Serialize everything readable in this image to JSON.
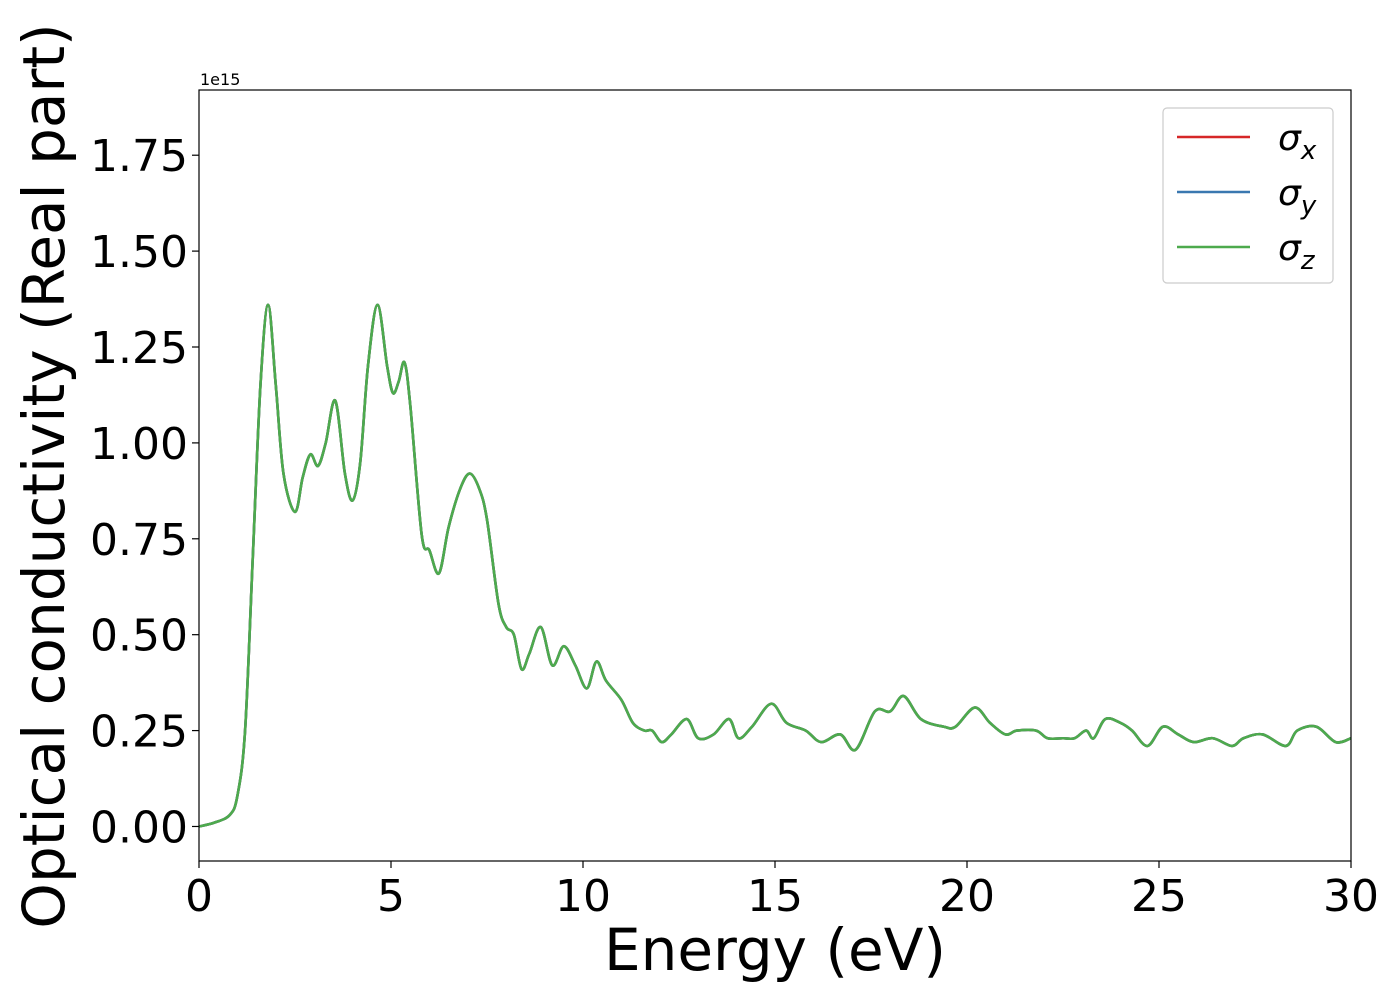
{
  "chart_data": {
    "type": "line",
    "xlabel": "Energy (eV)",
    "ylabel": "Optical conductivity (Real part)",
    "y_offset_label": "1e15",
    "xlim": [
      0,
      30
    ],
    "ylim": [
      -0.09,
      1.92
    ],
    "y_scale_factor": 1000000000000000.0,
    "xticks": [
      0,
      5,
      10,
      15,
      20,
      25,
      30
    ],
    "xtick_labels": [
      "0",
      "5",
      "10",
      "15",
      "20",
      "25",
      "30"
    ],
    "yticks": [
      0.0,
      0.25,
      0.5,
      0.75,
      1.0,
      1.25,
      1.5,
      1.75
    ],
    "ytick_labels": [
      "0.00",
      "0.25",
      "0.50",
      "0.75",
      "1.00",
      "1.25",
      "1.50",
      "1.75"
    ],
    "grid": false,
    "legend": {
      "placement": "top-right",
      "entries": [
        {
          "symbol": "σ",
          "sub": "x",
          "color": "#d62728"
        },
        {
          "symbol": "σ",
          "sub": "y",
          "color": "#3a78b0"
        },
        {
          "symbol": "σ",
          "sub": "z",
          "color": "#4daa4d"
        }
      ]
    },
    "series": [
      {
        "legend": "σx",
        "color": "#d62728",
        "x": [
          0,
          0.4,
          0.8,
          1.0,
          1.2,
          1.4,
          1.6,
          1.8,
          2.0,
          2.2,
          2.5,
          2.7,
          2.9,
          3.1,
          3.3,
          3.55,
          3.8,
          4.0,
          4.2,
          4.4,
          4.65,
          4.9,
          5.05,
          5.2,
          5.35,
          5.5,
          5.8,
          6.0,
          6.25,
          6.5,
          6.8,
          7.05,
          7.3,
          7.5,
          7.8,
          8.0,
          8.2,
          8.4,
          8.6,
          8.9,
          9.2,
          9.5,
          9.8,
          10.1,
          10.35,
          10.6,
          11.0,
          11.3,
          11.6,
          11.8,
          12.05,
          12.3,
          12.7,
          13.0,
          13.4,
          13.8,
          14.05,
          14.4,
          14.9,
          15.3,
          15.8,
          16.2,
          16.7,
          17.1,
          17.6,
          18.0,
          18.35,
          18.8,
          19.4,
          19.7,
          20.2,
          20.6,
          21.0,
          21.3,
          21.8,
          22.1,
          22.5,
          22.8,
          23.1,
          23.3,
          23.6,
          24.0,
          24.3,
          24.7,
          25.1,
          25.5,
          25.9,
          26.4,
          26.9,
          27.2,
          27.7,
          28.3,
          28.6,
          29.1,
          29.6,
          30.0
        ],
        "y": [
          0.0,
          0.01,
          0.03,
          0.08,
          0.25,
          0.7,
          1.15,
          1.36,
          1.15,
          0.92,
          0.82,
          0.91,
          0.97,
          0.94,
          1.0,
          1.11,
          0.92,
          0.85,
          0.95,
          1.2,
          1.36,
          1.2,
          1.13,
          1.16,
          1.21,
          1.1,
          0.76,
          0.72,
          0.66,
          0.78,
          0.88,
          0.92,
          0.88,
          0.8,
          0.58,
          0.52,
          0.5,
          0.41,
          0.45,
          0.52,
          0.42,
          0.47,
          0.42,
          0.36,
          0.43,
          0.38,
          0.33,
          0.27,
          0.25,
          0.25,
          0.22,
          0.24,
          0.28,
          0.23,
          0.24,
          0.28,
          0.23,
          0.26,
          0.32,
          0.27,
          0.25,
          0.22,
          0.24,
          0.2,
          0.3,
          0.3,
          0.34,
          0.28,
          0.26,
          0.26,
          0.31,
          0.27,
          0.24,
          0.25,
          0.25,
          0.23,
          0.23,
          0.23,
          0.25,
          0.23,
          0.28,
          0.27,
          0.25,
          0.21,
          0.26,
          0.24,
          0.22,
          0.23,
          0.21,
          0.23,
          0.24,
          0.21,
          0.25,
          0.26,
          0.22,
          0.23
        ]
      },
      {
        "legend": "σy",
        "color": "#3a78b0",
        "x": [
          0,
          0.4,
          0.8,
          1.0,
          1.2,
          1.4,
          1.6,
          1.8,
          2.0,
          2.2,
          2.5,
          2.7,
          2.9,
          3.1,
          3.3,
          3.55,
          3.8,
          4.0,
          4.2,
          4.4,
          4.65,
          4.9,
          5.05,
          5.2,
          5.35,
          5.5,
          5.8,
          6.0,
          6.25,
          6.5,
          6.8,
          7.05,
          7.3,
          7.5,
          7.8,
          8.0,
          8.2,
          8.4,
          8.6,
          8.9,
          9.2,
          9.5,
          9.8,
          10.1,
          10.35,
          10.6,
          11.0,
          11.3,
          11.6,
          11.8,
          12.05,
          12.3,
          12.7,
          13.0,
          13.4,
          13.8,
          14.05,
          14.4,
          14.9,
          15.3,
          15.8,
          16.2,
          16.7,
          17.1,
          17.6,
          18.0,
          18.35,
          18.8,
          19.4,
          19.7,
          20.2,
          20.6,
          21.0,
          21.3,
          21.8,
          22.1,
          22.5,
          22.8,
          23.1,
          23.3,
          23.6,
          24.0,
          24.3,
          24.7,
          25.1,
          25.5,
          25.9,
          26.4,
          26.9,
          27.2,
          27.7,
          28.3,
          28.6,
          29.1,
          29.6,
          30.0
        ],
        "y": [
          0.0,
          0.01,
          0.03,
          0.08,
          0.25,
          0.7,
          1.15,
          1.36,
          1.15,
          0.92,
          0.82,
          0.91,
          0.97,
          0.94,
          1.0,
          1.11,
          0.92,
          0.85,
          0.95,
          1.2,
          1.36,
          1.2,
          1.13,
          1.16,
          1.21,
          1.1,
          0.76,
          0.72,
          0.66,
          0.78,
          0.88,
          0.92,
          0.88,
          0.8,
          0.58,
          0.52,
          0.5,
          0.41,
          0.45,
          0.52,
          0.42,
          0.47,
          0.42,
          0.36,
          0.43,
          0.38,
          0.33,
          0.27,
          0.25,
          0.25,
          0.22,
          0.24,
          0.28,
          0.23,
          0.24,
          0.28,
          0.23,
          0.26,
          0.32,
          0.27,
          0.25,
          0.22,
          0.24,
          0.2,
          0.3,
          0.3,
          0.34,
          0.28,
          0.26,
          0.26,
          0.31,
          0.27,
          0.24,
          0.25,
          0.25,
          0.23,
          0.23,
          0.23,
          0.25,
          0.23,
          0.28,
          0.27,
          0.25,
          0.21,
          0.26,
          0.24,
          0.22,
          0.23,
          0.21,
          0.23,
          0.24,
          0.21,
          0.25,
          0.26,
          0.22,
          0.23
        ]
      },
      {
        "legend": "σz",
        "color": "#4daa4d",
        "x": [
          0,
          0.4,
          0.8,
          1.0,
          1.2,
          1.4,
          1.6,
          1.8,
          2.0,
          2.2,
          2.5,
          2.7,
          2.9,
          3.1,
          3.3,
          3.55,
          3.8,
          4.0,
          4.2,
          4.4,
          4.65,
          4.9,
          5.05,
          5.2,
          5.35,
          5.5,
          5.8,
          6.0,
          6.25,
          6.5,
          6.8,
          7.05,
          7.3,
          7.5,
          7.8,
          8.0,
          8.2,
          8.4,
          8.6,
          8.9,
          9.2,
          9.5,
          9.8,
          10.1,
          10.35,
          10.6,
          11.0,
          11.3,
          11.6,
          11.8,
          12.05,
          12.3,
          12.7,
          13.0,
          13.4,
          13.8,
          14.05,
          14.4,
          14.9,
          15.3,
          15.8,
          16.2,
          16.7,
          17.1,
          17.6,
          18.0,
          18.35,
          18.8,
          19.4,
          19.7,
          20.2,
          20.6,
          21.0,
          21.3,
          21.8,
          22.1,
          22.5,
          22.8,
          23.1,
          23.3,
          23.6,
          24.0,
          24.3,
          24.7,
          25.1,
          25.5,
          25.9,
          26.4,
          26.9,
          27.2,
          27.7,
          28.3,
          28.6,
          29.1,
          29.6,
          30.0
        ],
        "y": [
          0.0,
          0.01,
          0.03,
          0.08,
          0.25,
          0.7,
          1.15,
          1.36,
          1.15,
          0.92,
          0.82,
          0.91,
          0.97,
          0.94,
          1.0,
          1.11,
          0.92,
          0.85,
          0.95,
          1.2,
          1.36,
          1.2,
          1.13,
          1.16,
          1.21,
          1.1,
          0.76,
          0.72,
          0.66,
          0.78,
          0.88,
          0.92,
          0.88,
          0.8,
          0.58,
          0.52,
          0.5,
          0.41,
          0.45,
          0.52,
          0.42,
          0.47,
          0.42,
          0.36,
          0.43,
          0.38,
          0.33,
          0.27,
          0.25,
          0.25,
          0.22,
          0.24,
          0.28,
          0.23,
          0.24,
          0.28,
          0.23,
          0.26,
          0.32,
          0.27,
          0.25,
          0.22,
          0.24,
          0.2,
          0.3,
          0.3,
          0.34,
          0.28,
          0.26,
          0.26,
          0.31,
          0.27,
          0.24,
          0.25,
          0.25,
          0.23,
          0.23,
          0.23,
          0.25,
          0.23,
          0.28,
          0.27,
          0.25,
          0.21,
          0.26,
          0.24,
          0.22,
          0.23,
          0.21,
          0.23,
          0.24,
          0.21,
          0.25,
          0.26,
          0.22,
          0.23
        ]
      }
    ]
  }
}
